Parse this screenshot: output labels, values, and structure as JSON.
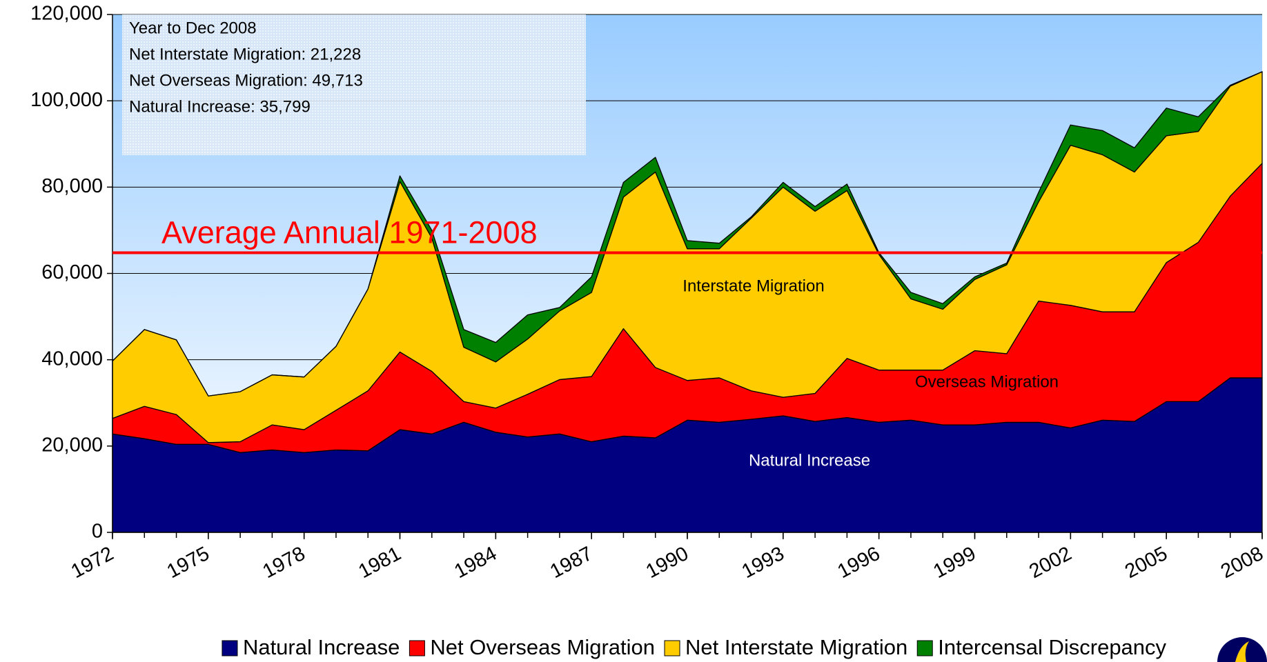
{
  "chart_data": {
    "type": "stacked_area",
    "x": [
      1972,
      1973,
      1974,
      1975,
      1976,
      1977,
      1978,
      1979,
      1980,
      1981,
      1982,
      1983,
      1984,
      1985,
      1986,
      1987,
      1988,
      1989,
      1990,
      1991,
      1992,
      1993,
      1994,
      1995,
      1996,
      1997,
      1998,
      1999,
      2000,
      2001,
      2002,
      2003,
      2004,
      2005,
      2006,
      2007,
      2008
    ],
    "xlim": [
      1972,
      2008
    ],
    "xticks": [
      1972,
      1975,
      1978,
      1981,
      1984,
      1987,
      1990,
      1993,
      1996,
      1999,
      2002,
      2005,
      2008
    ],
    "ylim": [
      0,
      120000
    ],
    "yticks": [
      0,
      {
        "value": 20000,
        "label": "20,000"
      },
      {
        "value": 40000,
        "label": "40,000"
      },
      {
        "value": 60000,
        "label": "60,000"
      },
      {
        "value": 80000,
        "label": "80,000"
      },
      {
        "value": 100000,
        "label": "100,000"
      },
      {
        "value": 120000,
        "label": "120,000"
      }
    ],
    "grid": true,
    "series": [
      {
        "name": "Natural Increase",
        "color": "#000080",
        "values": [
          22800,
          21700,
          20400,
          20400,
          18500,
          19100,
          18500,
          19100,
          18900,
          23800,
          22800,
          25500,
          23200,
          22100,
          22800,
          21000,
          22300,
          21900,
          26000,
          25500,
          26200,
          27000,
          25700,
          26600,
          25500,
          26000,
          24900,
          24900,
          25500,
          25500,
          24200,
          26000,
          25700,
          30300,
          30300,
          35800,
          35799
        ]
      },
      {
        "name": "Net Overseas Migration",
        "color": "#ff0000",
        "values": [
          3600,
          7500,
          6900,
          400,
          2500,
          5800,
          5300,
          9200,
          13900,
          18000,
          14500,
          4800,
          5600,
          9900,
          12600,
          15100,
          24900,
          16300,
          9200,
          10300,
          6600,
          4300,
          6500,
          13700,
          12100,
          11600,
          12700,
          17200,
          15900,
          28100,
          28400,
          25100,
          25400,
          32200,
          36900,
          42100,
          49713
        ]
      },
      {
        "name": "Net Interstate Migration",
        "color": "#ffcc00",
        "values": [
          13300,
          17800,
          17300,
          10800,
          11600,
          11600,
          12200,
          14800,
          23600,
          39500,
          30900,
          12600,
          10700,
          12800,
          15900,
          19500,
          30500,
          45300,
          30500,
          29900,
          40000,
          48700,
          42200,
          38900,
          26800,
          16500,
          14100,
          16500,
          20600,
          23000,
          37100,
          36400,
          32400,
          29400,
          25700,
          25500,
          21228
        ]
      },
      {
        "name": "Intercensal Discrepancy",
        "color": "#008000",
        "values": [
          0,
          0,
          0,
          0,
          0,
          0,
          0,
          0,
          0,
          1300,
          1800,
          4100,
          4500,
          5600,
          800,
          3600,
          3400,
          3400,
          1900,
          1300,
          300,
          1100,
          1100,
          1500,
          400,
          1500,
          1300,
          600,
          400,
          2200,
          4700,
          5600,
          5600,
          6400,
          3400,
          200,
          0
        ]
      }
    ],
    "reference_line": {
      "value": 64800,
      "label": "Average Annual 1971-2008",
      "color": "#ff0000"
    },
    "info_box": [
      "Year to Dec 2008",
      "Net Interstate Migration: 21,228",
      "Net Overseas Migration: 49,713",
      "Natural Increase: 35,799"
    ],
    "area_labels": [
      "Interstate Migration",
      "Overseas Migration",
      "Natural Increase"
    ]
  }
}
